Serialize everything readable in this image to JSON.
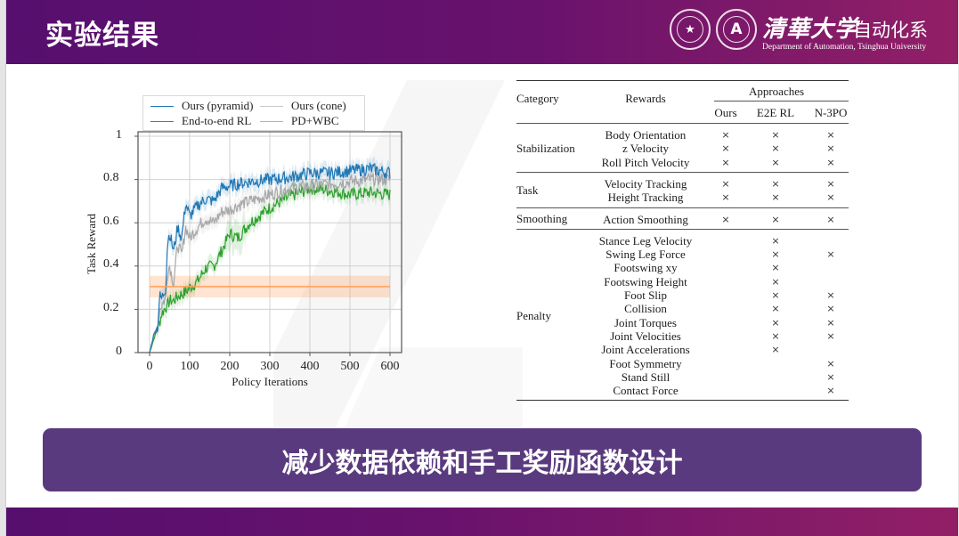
{
  "header": {
    "title": "实验结果",
    "university_name": "清華大学",
    "department_cn": "自动化系",
    "department_en": "Department of Automation, Tsinghua University",
    "seal_left_icon": "tsinghua-university-seal",
    "seal_right_icon": "department-of-automation-seal"
  },
  "colors": {
    "header_start": "#560f6e",
    "header_end": "#921f66",
    "banner": "#5a3a7e",
    "series_pyramid": "#1f77b4",
    "series_cone": "#a8a8a8",
    "series_e2e": "#2ca02c",
    "series_pdwbc": "#ff7f0e"
  },
  "chart_data": {
    "type": "line",
    "title": "",
    "xlabel": "Policy Iterations",
    "ylabel": "Task Reward",
    "xlim": [
      0,
      600
    ],
    "ylim": [
      0,
      1
    ],
    "xticks": [
      "0",
      "100",
      "200",
      "300",
      "400",
      "500",
      "600"
    ],
    "yticks": [
      "0",
      "0.2",
      "0.4",
      "0.6",
      "0.8",
      "1"
    ],
    "grid": true,
    "legend_position": "top (above plot), 2 columns",
    "legend": [
      "Ours (pyramid)",
      "Ours (cone)",
      "End-to-end RL",
      "PD+WBC"
    ],
    "x": [
      0,
      10,
      20,
      25,
      30,
      40,
      45,
      50,
      60,
      70,
      80,
      90,
      100,
      120,
      140,
      160,
      180,
      200,
      220,
      250,
      300,
      350,
      400,
      450,
      500,
      550,
      600
    ],
    "series": [
      {
        "name": "Ours (pyramid)",
        "values": [
          0,
          0.08,
          0.12,
          0.26,
          0.25,
          0.3,
          0.52,
          0.55,
          0.47,
          0.58,
          0.53,
          0.69,
          0.63,
          0.68,
          0.71,
          0.7,
          0.76,
          0.77,
          0.78,
          0.79,
          0.8,
          0.81,
          0.83,
          0.83,
          0.84,
          0.85,
          0.83
        ]
      },
      {
        "name": "Ours (cone)",
        "values": [
          0,
          0.08,
          0.12,
          0.2,
          0.22,
          0.25,
          0.38,
          0.4,
          0.32,
          0.5,
          0.45,
          0.58,
          0.53,
          0.58,
          0.62,
          0.6,
          0.65,
          0.66,
          0.68,
          0.7,
          0.73,
          0.76,
          0.77,
          0.78,
          0.79,
          0.8,
          0.8
        ]
      },
      {
        "name": "End-to-end RL",
        "values": [
          0,
          0.06,
          0.11,
          0.14,
          0.18,
          0.21,
          0.22,
          0.24,
          0.24,
          0.26,
          0.27,
          0.28,
          0.3,
          0.33,
          0.39,
          0.4,
          0.47,
          0.55,
          0.53,
          0.6,
          0.67,
          0.72,
          0.76,
          0.75,
          0.73,
          0.74,
          0.73
        ]
      },
      {
        "name": "PD+WBC",
        "values": [
          0.305,
          0.305,
          0.305,
          0.305,
          0.305,
          0.305,
          0.305,
          0.305,
          0.305,
          0.305,
          0.305,
          0.305,
          0.305,
          0.305,
          0.305,
          0.305,
          0.305,
          0.305,
          0.305,
          0.305,
          0.305,
          0.305,
          0.305,
          0.305,
          0.305,
          0.305,
          0.305
        ],
        "band": [
          0.255,
          0.355
        ]
      }
    ]
  },
  "table": {
    "headers": {
      "category": "Category",
      "rewards": "Rewards",
      "approaches": "Approaches",
      "columns": [
        "Ours",
        "E2E RL",
        "N-3PO"
      ]
    },
    "mark": "×",
    "groups": [
      {
        "category": "Stabilization",
        "rows": [
          {
            "reward": "Body Orientation",
            "marks": [
              true,
              true,
              true
            ]
          },
          {
            "reward": "z Velocity",
            "marks": [
              true,
              true,
              true
            ]
          },
          {
            "reward": "Roll Pitch Velocity",
            "marks": [
              true,
              true,
              true
            ]
          }
        ]
      },
      {
        "category": "Task",
        "rows": [
          {
            "reward": "Velocity Tracking",
            "marks": [
              true,
              true,
              true
            ]
          },
          {
            "reward": "Height Tracking",
            "marks": [
              true,
              true,
              true
            ]
          }
        ]
      },
      {
        "category": "Smoothing",
        "rows": [
          {
            "reward": "Action Smoothing",
            "marks": [
              true,
              true,
              true
            ]
          }
        ]
      },
      {
        "category": "Penalty",
        "rows": [
          {
            "reward": "Stance Leg Velocity",
            "marks": [
              false,
              true,
              false
            ]
          },
          {
            "reward": "Swing Leg Force",
            "marks": [
              false,
              true,
              true
            ]
          },
          {
            "reward": "Footswing xy",
            "marks": [
              false,
              true,
              false
            ]
          },
          {
            "reward": "Footswing Height",
            "marks": [
              false,
              true,
              false
            ]
          },
          {
            "reward": "Foot Slip",
            "marks": [
              false,
              true,
              true
            ]
          },
          {
            "reward": "Collision",
            "marks": [
              false,
              true,
              true
            ]
          },
          {
            "reward": "Joint Torques",
            "marks": [
              false,
              true,
              true
            ]
          },
          {
            "reward": "Joint Velocities",
            "marks": [
              false,
              true,
              true
            ]
          },
          {
            "reward": "Joint Accelerations",
            "marks": [
              false,
              true,
              false
            ]
          },
          {
            "reward": "Foot Symmetry",
            "marks": [
              false,
              false,
              true
            ]
          },
          {
            "reward": "Stand Still",
            "marks": [
              false,
              false,
              true
            ]
          },
          {
            "reward": "Contact Force",
            "marks": [
              false,
              false,
              true
            ]
          }
        ]
      }
    ]
  },
  "banner": {
    "text": "减少数据依赖和手工奖励函数设计"
  }
}
